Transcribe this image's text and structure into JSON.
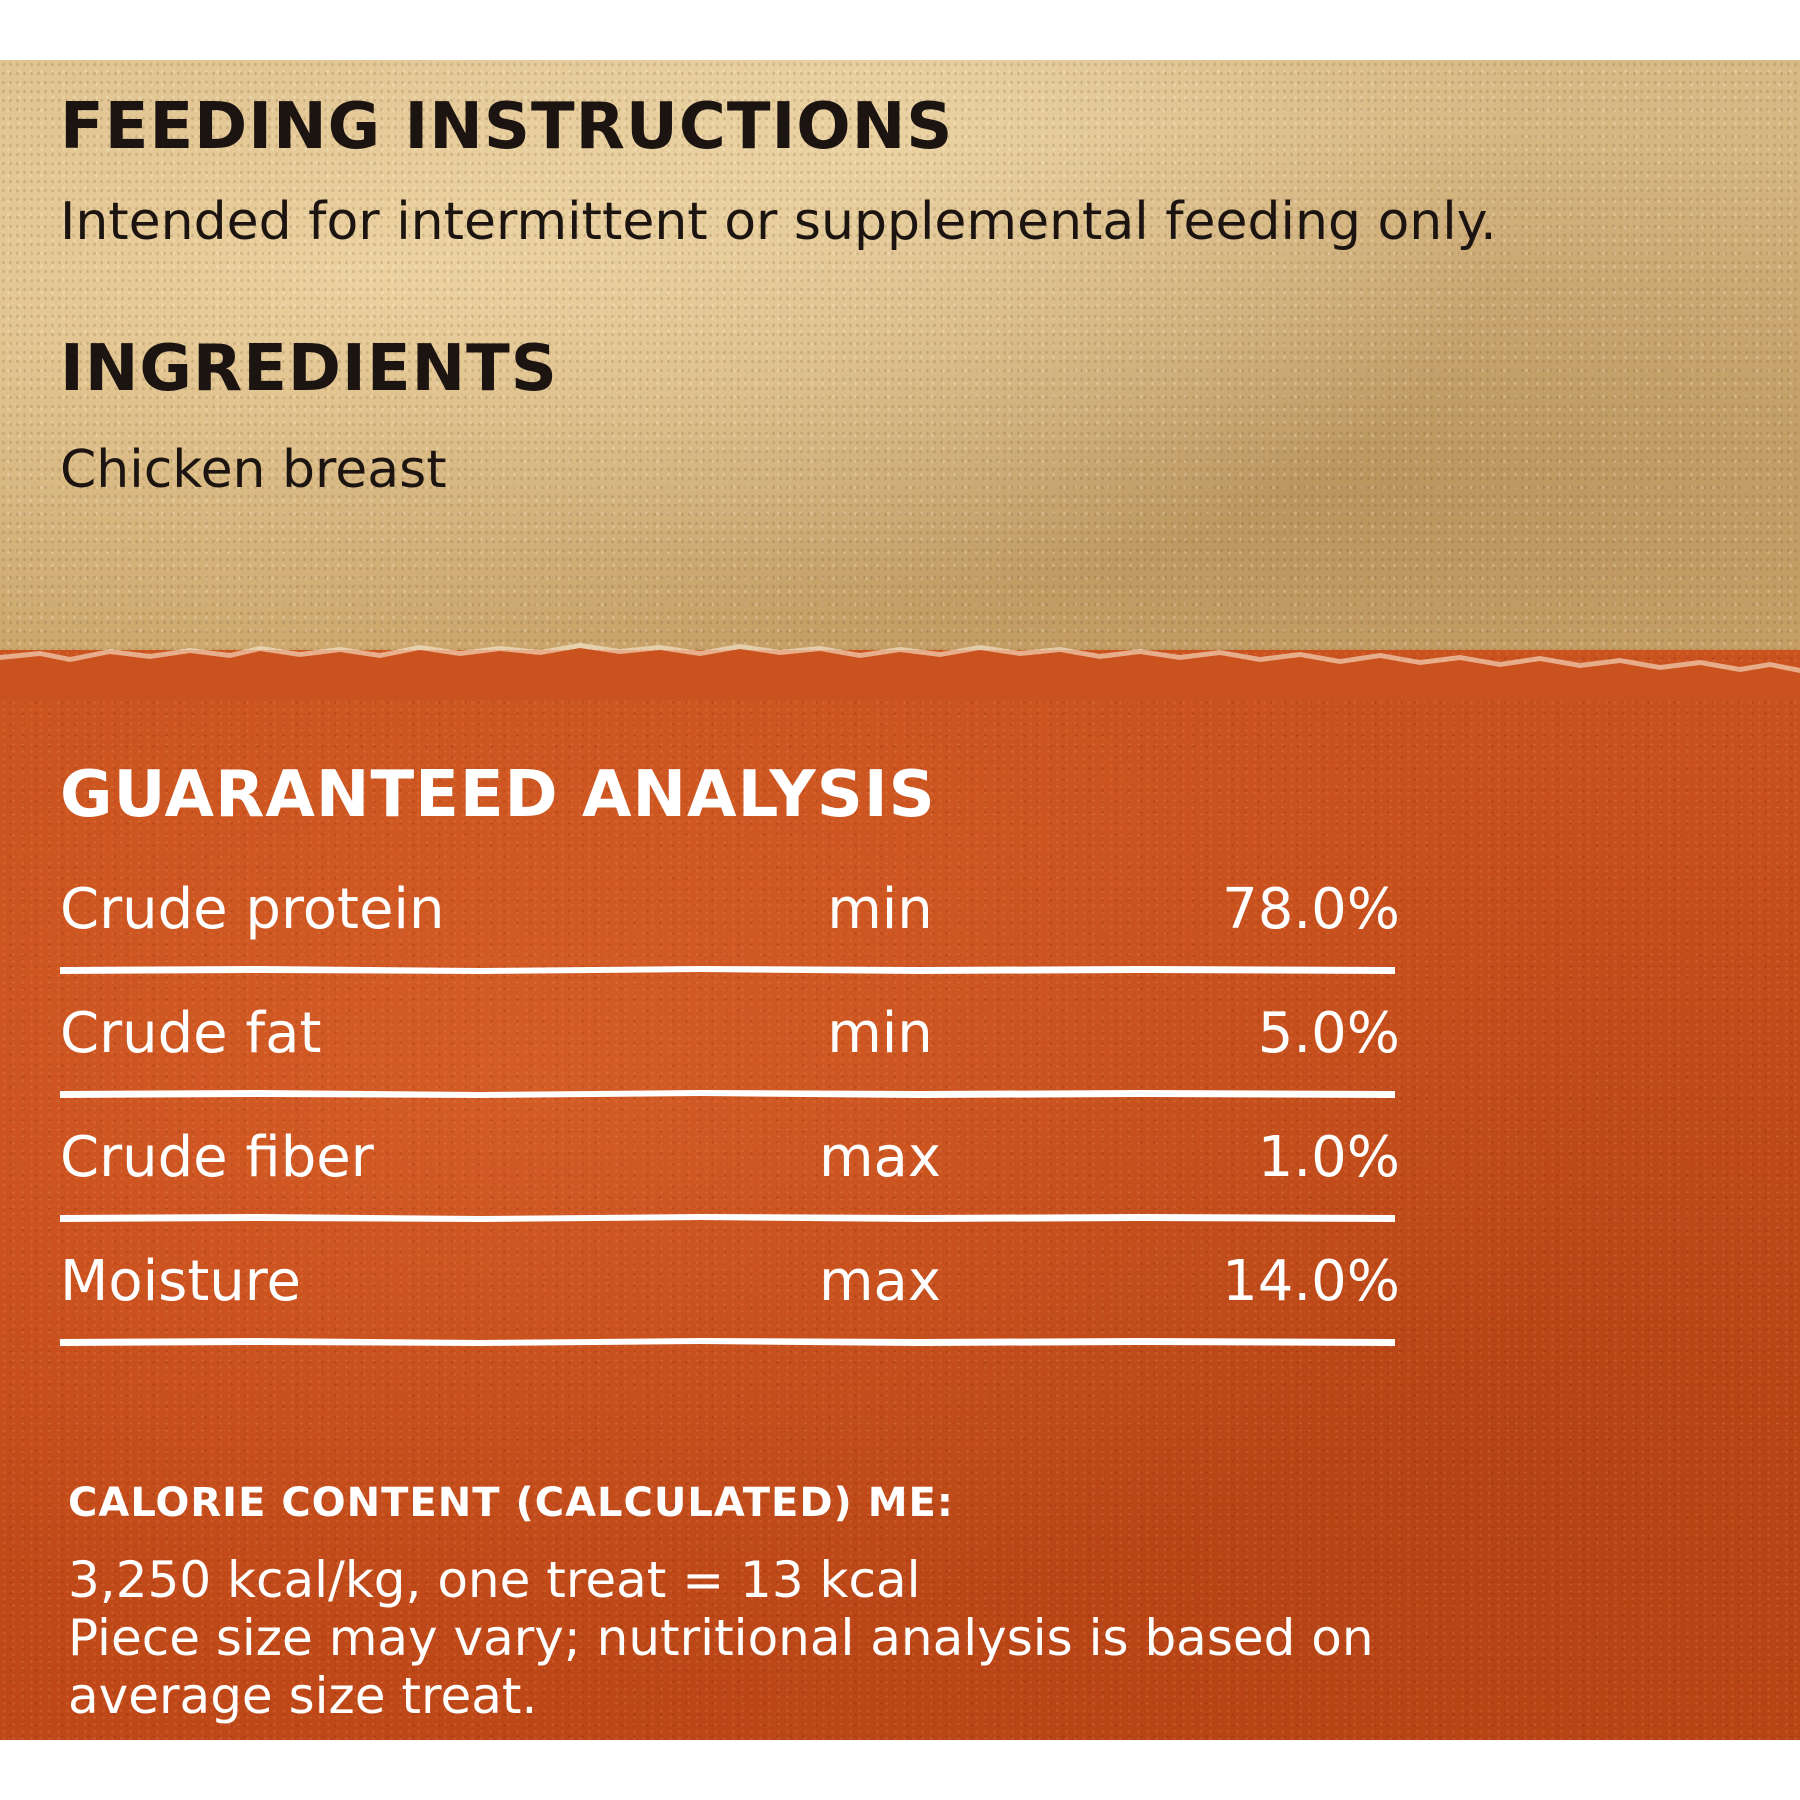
{
  "feeding": {
    "heading": "FEEDING INSTRUCTIONS",
    "text": "Intended for intermittent or supplemental feeding only."
  },
  "ingredients": {
    "heading": "INGREDIENTS",
    "text": "Chicken breast"
  },
  "guaranteed_analysis": {
    "heading": "GUARANTEED ANALYSIS",
    "rows": [
      {
        "nutrient": "Crude protein",
        "qualifier": "min",
        "value": "78.0%"
      },
      {
        "nutrient": "Crude fat",
        "qualifier": "min",
        "value": "5.0%"
      },
      {
        "nutrient": "Crude fiber",
        "qualifier": "max",
        "value": "1.0%"
      },
      {
        "nutrient": "Moisture",
        "qualifier": "max",
        "value": "14.0%"
      }
    ]
  },
  "calorie": {
    "heading": "CALORIE CONTENT (CALCULATED) ME:",
    "lines": [
      "3,250 kcal/kg, one treat = 13 kcal",
      "Piece size may vary; nutritional analysis is based on",
      "average size treat."
    ]
  },
  "colors": {
    "kraft": "#d3b27a",
    "orange": "#c54c1b",
    "dark_text": "#1b1410",
    "light_text": "#ffffff"
  }
}
